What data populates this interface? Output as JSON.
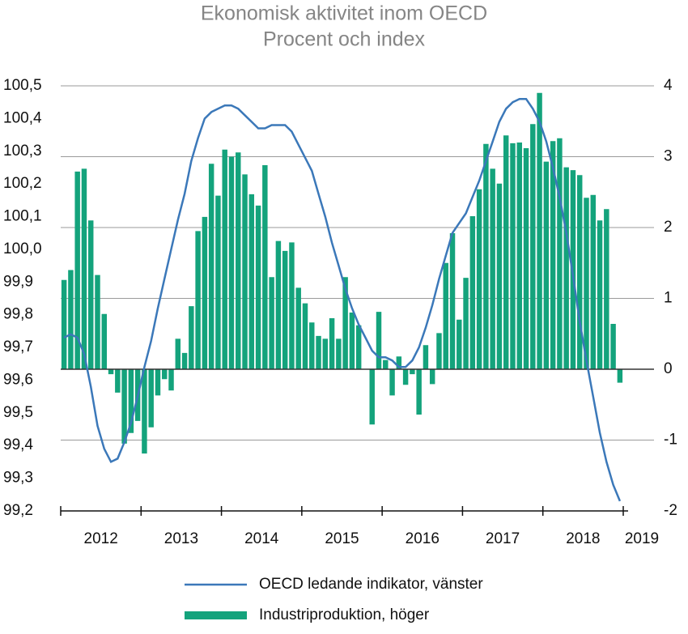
{
  "chart_data": {
    "type": "bar-line",
    "title": [
      "Ekonomisk aktivitet inom OECD",
      "Procent och index"
    ],
    "xlim": [
      2012,
      2019
    ],
    "xticks": [
      2012,
      2013,
      2014,
      2015,
      2016,
      2017,
      2018,
      2019
    ],
    "ylim": [
      99.2,
      100.5
    ],
    "yticks": [
      {
        "value": 99.2,
        "label": "99,2"
      },
      {
        "value": 99.3,
        "label": "99,3"
      },
      {
        "value": 99.4,
        "label": "99,4"
      },
      {
        "value": 99.5,
        "label": "99,5"
      },
      {
        "value": 99.6,
        "label": "99,6"
      },
      {
        "value": 99.7,
        "label": "99,7"
      },
      {
        "value": 99.8,
        "label": "99,8"
      },
      {
        "value": 99.9,
        "label": "99,9"
      },
      {
        "value": 100.0,
        "label": "100,0"
      },
      {
        "value": 100.1,
        "label": "100,1"
      },
      {
        "value": 100.2,
        "label": "100,2"
      },
      {
        "value": 100.3,
        "label": "100,3"
      },
      {
        "value": 100.4,
        "label": "100,4"
      },
      {
        "value": 100.5,
        "label": "100,5"
      }
    ],
    "y2lim": [
      -2,
      4
    ],
    "y2ticks": [
      -2,
      -1,
      0,
      1,
      2,
      3,
      4
    ],
    "grid": true,
    "series": [
      {
        "name": "OECD ledande indikator, vänster",
        "type": "line",
        "color": "#3b78b9",
        "values": [
          99.73,
          99.74,
          99.73,
          99.68,
          99.58,
          99.46,
          99.39,
          99.35,
          99.36,
          99.41,
          99.47,
          99.55,
          99.64,
          99.72,
          99.82,
          99.91,
          100.0,
          100.09,
          100.17,
          100.27,
          100.34,
          100.4,
          100.42,
          100.43,
          100.44,
          100.44,
          100.43,
          100.41,
          100.39,
          100.37,
          100.37,
          100.38,
          100.38,
          100.38,
          100.36,
          100.32,
          100.28,
          100.24,
          100.17,
          100.1,
          100.02,
          99.95,
          99.88,
          99.82,
          99.77,
          99.73,
          99.69,
          99.67,
          99.67,
          99.66,
          99.64,
          99.64,
          99.66,
          99.7,
          99.76,
          99.83,
          99.91,
          99.98,
          100.05,
          100.08,
          100.11,
          100.16,
          100.21,
          100.27,
          100.33,
          100.39,
          100.43,
          100.45,
          100.46,
          100.46,
          100.43,
          100.39,
          100.33,
          100.25,
          100.16,
          100.05,
          99.92,
          99.78,
          99.66,
          99.55,
          99.44,
          99.35,
          99.28,
          99.23
        ]
      },
      {
        "name": "Industriproduktion, höger",
        "type": "bar",
        "axis": "y2",
        "color": "#14a37c",
        "values": [
          1.26,
          1.4,
          2.79,
          2.83,
          2.1,
          1.33,
          0.78,
          -0.07,
          -0.33,
          -1.05,
          -0.9,
          -0.73,
          -1.19,
          -0.82,
          -0.37,
          -0.14,
          -0.3,
          0.43,
          0.23,
          0.89,
          1.95,
          2.15,
          2.9,
          2.45,
          3.1,
          3.0,
          3.06,
          2.75,
          2.47,
          2.31,
          2.88,
          1.3,
          1.81,
          1.67,
          1.79,
          1.15,
          0.93,
          0.66,
          0.47,
          0.43,
          0.72,
          0.43,
          1.3,
          0.8,
          0.62,
          0,
          -0.78,
          0.81,
          0.13,
          -0.37,
          0.18,
          -0.22,
          -0.07,
          -0.64,
          0.34,
          -0.21,
          0.51,
          1.5,
          1.92,
          0.7,
          1.29,
          2.16,
          2.54,
          3.18,
          2.83,
          2.62,
          3.3,
          3.19,
          3.2,
          3.12,
          3.46,
          3.9,
          2.93,
          3.22,
          3.26,
          2.85,
          2.81,
          2.74,
          2.42,
          2.46,
          2.1,
          2.26,
          0.64,
          -0.19
        ]
      }
    ]
  }
}
